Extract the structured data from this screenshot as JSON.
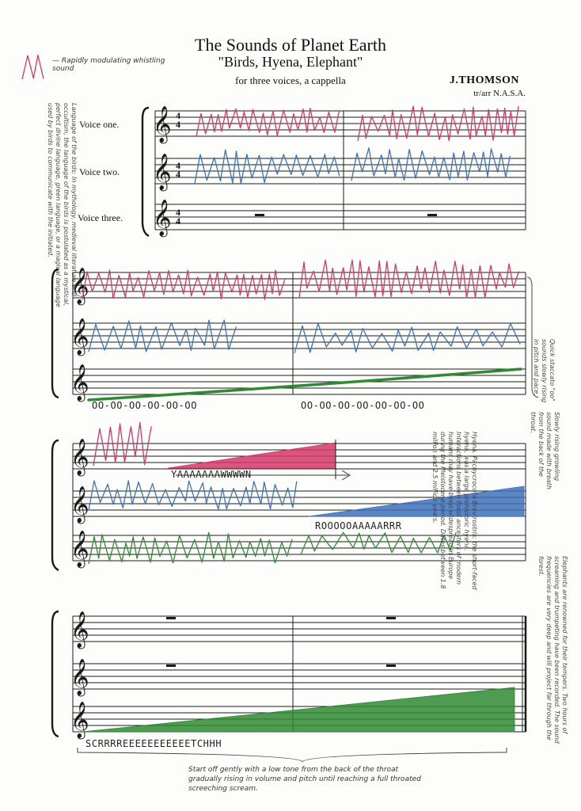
{
  "header": {
    "title": "The Sounds of Planet Earth",
    "subtitle": "\"Birds, Hyena, Elephant\"",
    "instrumentation": "for three voices, a cappella",
    "composer": "J.THOMSON",
    "arranger": "tr/arr N.A.S.A."
  },
  "legend": {
    "note": "— Rapidly modulating whistling sound"
  },
  "voices": {
    "one": "Voice one.",
    "two": "Voice two.",
    "three": "Voice three."
  },
  "time_signature": {
    "top": "4",
    "bottom": "4"
  },
  "lyrics": {
    "elephant_hum_1": "OO-OO-OO-OO-OO-OO",
    "elephant_hum_2": "OO-OO-OO-OO-OO-OO-OO",
    "hyena_yawn": "YAAAAAAAWWWWN",
    "hyena_roar": "ROOOOOAAAAARRR",
    "elephant_scream": "SCRRRREEEEEEEEEEETCHHH"
  },
  "margin_notes": {
    "birds": "Language of the birds: In mythology, medieval literature and occultism, the language of the birds is postulated as a mystical, perfect divine language, green language, or a magical language used by birds to communicate with the initiated.",
    "hyena": "Hyena. Pachycrocuta Brevirostris: the short-faced hyena, was a large prehistoric hyena. Interactions between fossil ancestors of modern humans may have been widespread in Europe during the Pleistocene period. Dates between 1.8 million and 2.5 million years.",
    "elephant_hum": "Quick staccato \"oo\" sounds slowly rising in pitch and pace.",
    "yawn": "Slowly rising growling sound made with breath from the back of the throat.",
    "elephant": "Elephants are renowned for their tempers. Two hours of screaming and trumpeting have been recorded. The sound frequencies are very deep and will project far through the forest.",
    "scream": "Start off gently with a low tone from the back of the throat gradually rising in volume and pitch until reaching a full throated screeching scream."
  },
  "colors": {
    "bird": "#d23869",
    "hyena": "#3d72b8",
    "elephant": "#2f8a33",
    "staff": "#1a1a1a"
  }
}
